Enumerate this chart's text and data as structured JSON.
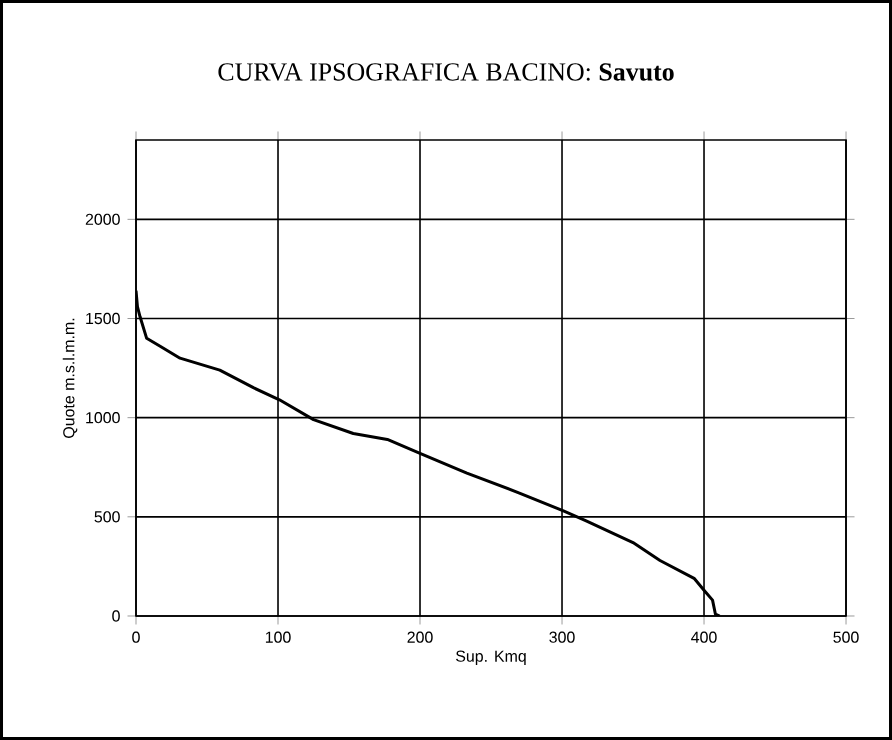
{
  "chart_data": {
    "type": "line",
    "title": "CURVA IPSOGRAFICA BACINO: **Savuto**",
    "xlabel": "Sup. Kmq",
    "ylabel": "Quote m.s.l.m.m.",
    "x": [
      0,
      1,
      2.8,
      7.5,
      17,
      31,
      59,
      83,
      101,
      125,
      153,
      177,
      200,
      233,
      270,
      301,
      317,
      350,
      369,
      393,
      400,
      406,
      408,
      411
    ],
    "series": [
      {
        "color": "#000000",
        "values": [
          1640,
          1560,
          1510,
          1400,
          1360,
          1300,
          1240,
          1150,
          1090,
          990,
          920,
          890,
          820,
          720,
          620,
          530,
          480,
          370,
          280,
          190,
          130,
          80,
          10,
          0
        ]
      }
    ],
    "xlim": [
      0,
      500
    ],
    "ylim": [
      0,
      2400
    ],
    "xticks": [
      0,
      100,
      200,
      300,
      400,
      500
    ],
    "yticks": [
      0,
      500,
      1000,
      1500,
      2000
    ],
    "grid": true,
    "marker": "none",
    "line_style": "solid"
  }
}
